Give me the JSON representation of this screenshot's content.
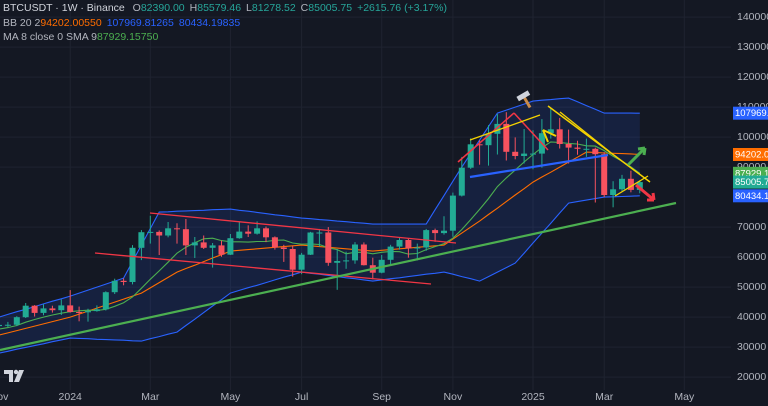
{
  "chart_data": {
    "type": "candlestick",
    "title": "BTCUSDT · 1W · Binance",
    "ohlc": [
      {
        "label": "O",
        "value": "82390.00"
      },
      {
        "label": "H",
        "value": "85579.46"
      },
      {
        "label": "L",
        "value": "81278.52"
      },
      {
        "label": "C",
        "value": "85005.75"
      }
    ],
    "change": "+2615.76 (+3.17%)",
    "indicators": [
      {
        "label": "BB 20 2",
        "values": [
          "94202.00550",
          "107969.81265",
          "80434.19835"
        ]
      },
      {
        "label": "MA 8 close 0 SMA 9",
        "values": [
          "87929.15750"
        ]
      }
    ],
    "categories": [
      "Nov",
      null,
      null,
      null,
      null,
      null,
      null,
      null,
      "2024",
      null,
      null,
      null,
      null,
      null,
      null,
      null,
      null,
      "Mar",
      null,
      null,
      null,
      null,
      null,
      null,
      null,
      null,
      "May",
      null,
      null,
      null,
      null,
      null,
      null,
      null,
      "Jul",
      null,
      null,
      null,
      null,
      null,
      null,
      null,
      null,
      "Sep",
      null,
      null,
      null,
      null,
      null,
      null,
      null,
      "Nov",
      null,
      null,
      null,
      null,
      null,
      null,
      null,
      null,
      "2025",
      null,
      null,
      null,
      null,
      null,
      null,
      null,
      "Mar",
      null,
      null,
      null,
      null,
      null,
      null,
      null,
      null,
      "May"
    ],
    "open": [
      37000,
      37400,
      37450,
      39970,
      43800,
      41400,
      42900,
      42300,
      43900,
      41700,
      41600,
      42000,
      42600,
      48300,
      52100,
      51700,
      63100,
      68300,
      68400,
      67200,
      69600,
      69300,
      63900,
      64900,
      63100,
      63900,
      60800,
      66300,
      68500,
      67800,
      69600,
      66600,
      63200,
      62700,
      55800,
      60800,
      68200,
      68200,
      58100,
      58700,
      58900,
      64200,
      57300,
      54800,
      59100,
      63500,
      65700,
      62900,
      63200,
      69000,
      68000,
      68800,
      80500,
      89800,
      97600,
      97300,
      101100,
      104400,
      95100,
      93700,
      94500,
      94500,
      101300,
      102600,
      97700,
      96500,
      96100,
      96100,
      94300,
      80700,
      82600,
      86100,
      82390,
      null,
      null,
      null,
      null,
      null
    ],
    "high": [
      38000,
      38400,
      40300,
      44700,
      44000,
      44300,
      43800,
      45900,
      49000,
      43500,
      42800,
      43900,
      48600,
      52800,
      52900,
      64000,
      69000,
      73800,
      68900,
      71700,
      71300,
      72700,
      66700,
      67200,
      64700,
      65500,
      67700,
      71900,
      70600,
      71900,
      70200,
      66900,
      64100,
      63800,
      61400,
      68400,
      69400,
      70000,
      62700,
      61800,
      65000,
      64900,
      59800,
      60700,
      64100,
      66400,
      66100,
      64500,
      69400,
      69500,
      73600,
      81500,
      93400,
      99600,
      98900,
      104000,
      107700,
      108300,
      99900,
      102700,
      102300,
      106000,
      109600,
      106400,
      102500,
      98800,
      99500,
      96500,
      95000,
      85300,
      87400,
      88800,
      85579.46,
      null,
      null,
      null,
      null,
      null
    ],
    "low": [
      35500,
      36700,
      37000,
      39700,
      40200,
      40600,
      41500,
      40700,
      41500,
      38600,
      38500,
      41800,
      42200,
      47700,
      50600,
      50900,
      59000,
      64500,
      60700,
      66600,
      64500,
      60700,
      59700,
      62700,
      56500,
      60100,
      60700,
      66100,
      66700,
      67500,
      65000,
      62500,
      58400,
      53500,
      54300,
      60700,
      63500,
      57100,
      49100,
      56100,
      57800,
      57200,
      52600,
      54600,
      57500,
      62500,
      59800,
      58900,
      62100,
      65100,
      67500,
      66800,
      80200,
      89400,
      90800,
      90500,
      94200,
      92200,
      92600,
      91200,
      89300,
      89800,
      99500,
      96200,
      91200,
      94100,
      93400,
      78200,
      80000,
      76600,
      82000,
      81600,
      81278.52,
      null,
      null,
      null,
      null,
      null
    ],
    "close": [
      37400,
      37450,
      39970,
      43800,
      41400,
      42900,
      42300,
      43900,
      41700,
      41600,
      42000,
      42600,
      48300,
      52100,
      51700,
      63100,
      68300,
      68400,
      67200,
      69600,
      69300,
      63900,
      64900,
      63100,
      63900,
      60800,
      66300,
      68500,
      67800,
      69600,
      66600,
      63200,
      62700,
      55800,
      60800,
      68200,
      68200,
      58100,
      58700,
      58900,
      64200,
      57300,
      54800,
      59100,
      63500,
      65700,
      62900,
      63200,
      69000,
      68000,
      68800,
      80500,
      89800,
      97600,
      97300,
      101100,
      104400,
      95100,
      93700,
      94500,
      94500,
      101300,
      102600,
      97700,
      96500,
      96100,
      96100,
      94300,
      80700,
      82600,
      86100,
      82400,
      85005.75,
      null,
      null,
      null,
      null,
      null
    ],
    "up_color": "#22ab94",
    "down_color": "#f7525f",
    "lines": [
      {
        "color": "#2962ff",
        "values": [
          40000,
          40900,
          41800,
          42600,
          43500,
          44400,
          45300,
          46100,
          47000,
          48000,
          49000,
          50000,
          51000,
          52000,
          53000,
          58500,
          64000,
          69500,
          75000,
          75100,
          75300,
          75400,
          75500,
          75600,
          75800,
          75900,
          76000,
          75600,
          75300,
          74900,
          74500,
          74100,
          73800,
          73400,
          73000,
          72800,
          72500,
          72300,
          72000,
          71800,
          71500,
          71300,
          71000,
          71000,
          71000,
          71000,
          71000,
          71000,
          71000,
          75800,
          80500,
          85300,
          90000,
          94500,
          99000,
          103500,
          108000,
          109000,
          110000,
          111000,
          112000,
          112300,
          112500,
          112800,
          113000,
          111800,
          110500,
          109300,
          108000,
          108000,
          108000,
          108000,
          107969.81265,
          null,
          null,
          null,
          null,
          null
        ]
      },
      {
        "color": "#ff6d00",
        "values": [
          34000,
          34750,
          35500,
          36250,
          37000,
          37750,
          38500,
          39250,
          40000,
          41000,
          42000,
          43000,
          44000,
          45000,
          46000,
          47000,
          48000,
          49750,
          51500,
          53250,
          55000,
          56200,
          57300,
          58500,
          59700,
          60800,
          62000,
          62250,
          62500,
          62750,
          63000,
          63250,
          63500,
          63750,
          64000,
          63750,
          63500,
          63250,
          63000,
          62750,
          62500,
          62250,
          62000,
          62250,
          62500,
          62750,
          63000,
          63250,
          63500,
          63750,
          64000,
          66000,
          68000,
          70000,
          72000,
          74200,
          76300,
          78500,
          80700,
          82800,
          85000,
          86700,
          88300,
          90000,
          91700,
          93300,
          95000,
          94900,
          94700,
          94600,
          94500,
          94400,
          94202.0055,
          null,
          null,
          null,
          null,
          null
        ]
      },
      {
        "color": "#2962ff",
        "values": [
          28000,
          28600,
          29300,
          29900,
          30500,
          31100,
          31800,
          32400,
          33000,
          32900,
          32800,
          32600,
          32500,
          32400,
          32300,
          32100,
          32000,
          32800,
          33500,
          34300,
          35000,
          37200,
          39300,
          41500,
          43700,
          45800,
          48000,
          48900,
          49800,
          50600,
          51500,
          52400,
          53300,
          54100,
          55000,
          54600,
          54300,
          53900,
          53500,
          53100,
          52800,
          52400,
          52000,
          52400,
          52800,
          53100,
          53500,
          53900,
          54300,
          54600,
          55000,
          54300,
          53500,
          52800,
          52000,
          53500,
          55000,
          56500,
          58000,
          61300,
          64700,
          68000,
          71300,
          74700,
          78000,
          78500,
          79000,
          79500,
          80000,
          80100,
          80200,
          80300,
          80434.19835,
          null,
          null,
          null,
          null,
          null
        ]
      },
      {
        "color": "#4caf50",
        "values": [
          36000,
          36500,
          37200,
          38300,
          39200,
          40000,
          40700,
          41300,
          41800,
          42100,
          42300,
          42200,
          42600,
          43600,
          44800,
          46700,
          49600,
          52600,
          55400,
          58300,
          61300,
          63300,
          64800,
          66100,
          66300,
          65500,
          65100,
          65100,
          65000,
          65200,
          65200,
          65600,
          65700,
          64700,
          64300,
          64400,
          64200,
          63100,
          62500,
          61100,
          61600,
          61600,
          61100,
          61600,
          61900,
          61800,
          61000,
          61200,
          62500,
          63500,
          64500,
          66300,
          69200,
          72500,
          75900,
          79500,
          83500,
          86400,
          89000,
          91700,
          94200,
          96500,
          98400,
          98200,
          97900,
          97700,
          97100,
          97000,
          95500,
          93600,
          92000,
          90100,
          87929.1575,
          null,
          null,
          null,
          null,
          null
        ]
      }
    ],
    "band_fill": "rgba(41,98,255,0.13)",
    "ylim": [
      15700,
      145700
    ],
    "yticks": [
      20000,
      30000,
      40000,
      50000,
      60000,
      70000,
      90000,
      100000,
      110000,
      120000,
      130000,
      140000
    ],
    "grid": true
  }
}
